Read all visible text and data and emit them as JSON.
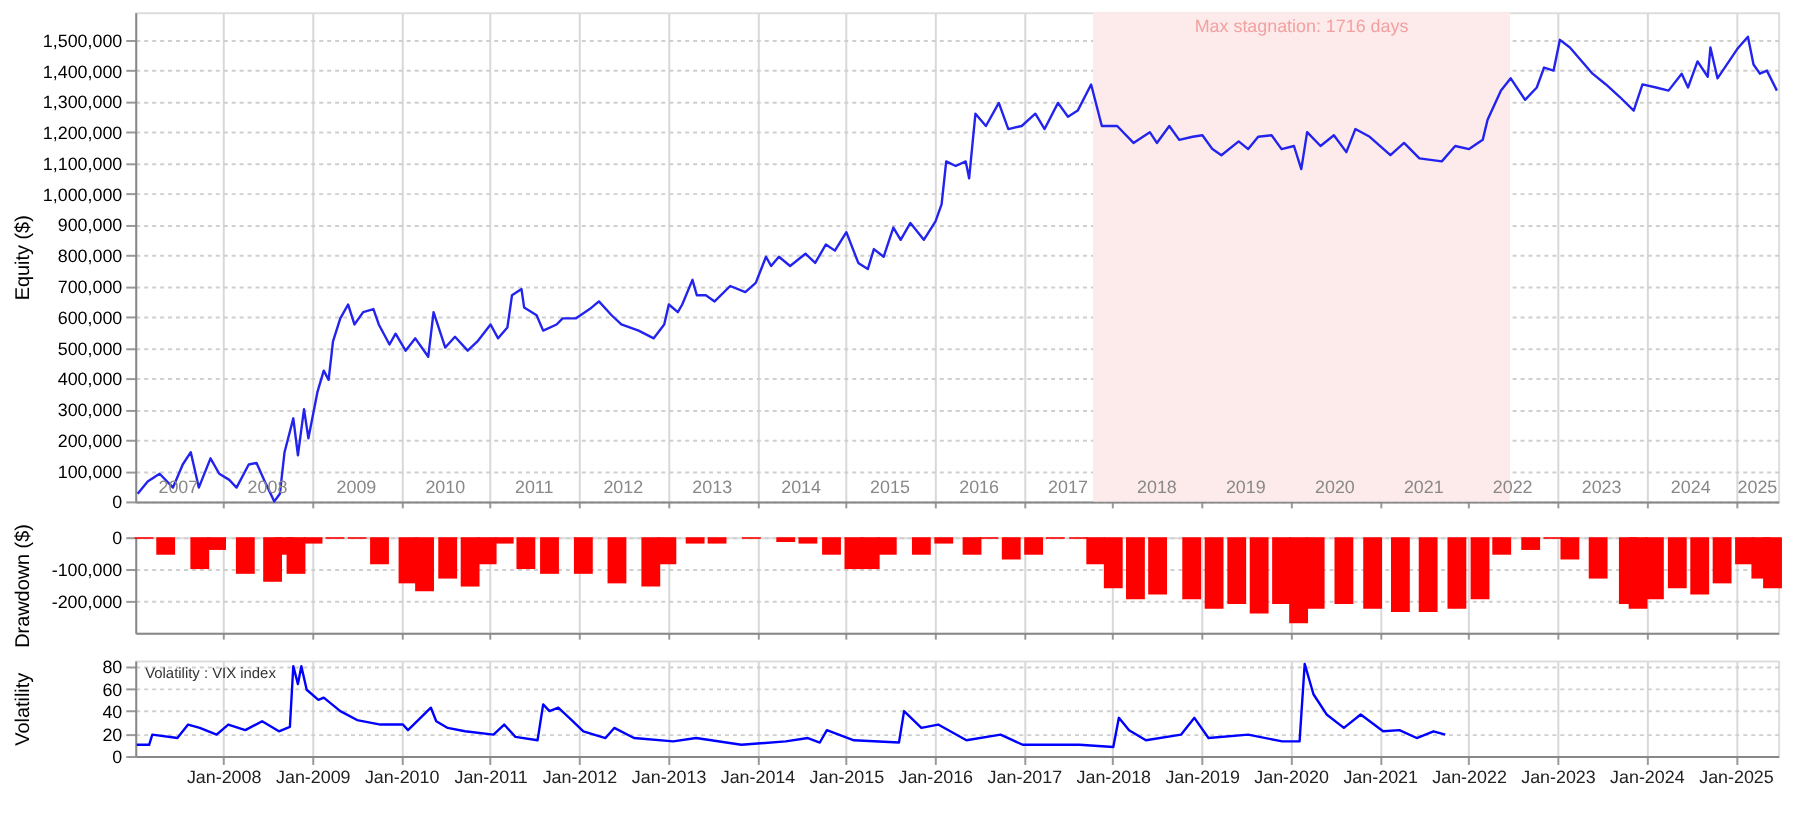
{
  "chart_data": [
    {
      "type": "line",
      "ylabel": "Equity ($)",
      "grid": true,
      "xlim": [
        "2007-01-05",
        "2025-06-25"
      ],
      "ylim": [
        0,
        1590000
      ],
      "yticks": [
        0,
        {
          "value": 100000,
          "label": "100,000"
        },
        {
          "value": 200000,
          "label": "200,000"
        },
        {
          "value": 300000,
          "label": "300,000"
        },
        {
          "value": 400000,
          "label": "400,000"
        },
        {
          "value": 500000,
          "label": "500,000"
        },
        {
          "value": 600000,
          "label": "600,000"
        },
        {
          "value": 700000,
          "label": "700,000"
        },
        {
          "value": 800000,
          "label": "800,000"
        },
        {
          "value": 900000,
          "label": "900,000"
        },
        {
          "value": 1000000,
          "label": "1,000,000"
        },
        {
          "value": 1100000,
          "label": "1,100,000"
        },
        {
          "value": 1200000,
          "label": "1,200,000"
        },
        {
          "value": 1300000,
          "label": "1,300,000"
        },
        {
          "value": 1400000,
          "label": "1,400,000"
        },
        {
          "value": 1500000,
          "label": "1,500,000"
        }
      ],
      "xticks": [
        {
          "value": "2007-07-01",
          "label": "2007"
        },
        {
          "value": "2008-01-01",
          "label": null
        },
        {
          "value": "2008-07-01",
          "label": "2008"
        },
        {
          "value": "2009-01-01",
          "label": null
        },
        {
          "value": "2009-07-01",
          "label": "2009"
        },
        {
          "value": "2010-01-01",
          "label": null
        },
        {
          "value": "2010-07-01",
          "label": "2010"
        },
        {
          "value": "2011-01-01",
          "label": null
        },
        {
          "value": "2011-07-01",
          "label": "2011"
        },
        {
          "value": "2012-01-01",
          "label": null
        },
        {
          "value": "2012-07-01",
          "label": "2012"
        },
        {
          "value": "2013-01-01",
          "label": null
        },
        {
          "value": "2013-07-01",
          "label": "2013"
        },
        {
          "value": "2014-01-01",
          "label": null
        },
        {
          "value": "2014-07-01",
          "label": "2014"
        },
        {
          "value": "2015-01-01",
          "label": null
        },
        {
          "value": "2015-07-01",
          "label": "2015"
        },
        {
          "value": "2016-01-01",
          "label": null
        },
        {
          "value": "2016-07-01",
          "label": "2016"
        },
        {
          "value": "2017-01-01",
          "label": null
        },
        {
          "value": "2017-07-01",
          "label": "2017"
        },
        {
          "value": "2018-01-01",
          "label": null
        },
        {
          "value": "2018-07-01",
          "label": "2018"
        },
        {
          "value": "2019-01-01",
          "label": null
        },
        {
          "value": "2019-07-01",
          "label": "2019"
        },
        {
          "value": "2020-01-01",
          "label": null
        },
        {
          "value": "2020-07-01",
          "label": "2020"
        },
        {
          "value": "2021-01-01",
          "label": null
        },
        {
          "value": "2021-07-01",
          "label": "2021"
        },
        {
          "value": "2022-01-01",
          "label": null
        },
        {
          "value": "2022-07-01",
          "label": "2022"
        },
        {
          "value": "2023-01-01",
          "label": null
        },
        {
          "value": "2023-07-01",
          "label": "2023"
        },
        {
          "value": "2024-01-01",
          "label": null
        },
        {
          "value": "2024-07-01",
          "label": "2024"
        },
        {
          "value": "2025-01-01",
          "label": null
        },
        {
          "value": "2025-04-01",
          "label": "2025"
        }
      ],
      "bands": [
        {
          "axis": "x",
          "from": "2017-10-12",
          "to": "2022-06-20",
          "label": "Max stagnation: 1716 days",
          "color": "#fdeaea"
        }
      ],
      "x": [
        "2007-01-15",
        "2007-02-25",
        "2007-04-15",
        "2007-06-09",
        "2007-07-19",
        "2007-08-21",
        "2007-09-23",
        "2007-11-10",
        "2007-12-16",
        "2008-01-26",
        "2008-02-25",
        "2008-04-15",
        "2008-05-17",
        "2008-06-20",
        "2008-07-29",
        "2008-08-21",
        "2008-09-09",
        "2008-10-15",
        "2008-11-03",
        "2008-11-28",
        "2008-12-16",
        "2009-01-22",
        "2009-02-17",
        "2009-03-09",
        "2009-03-27",
        "2009-04-26",
        "2009-05-28",
        "2009-06-23",
        "2009-07-29",
        "2009-09-09",
        "2009-10-01",
        "2009-11-14",
        "2009-12-09",
        "2010-01-19",
        "2010-02-28",
        "2010-04-22",
        "2010-05-14",
        "2010-07-01",
        "2010-08-10",
        "2010-10-01",
        "2010-11-10",
        "2011-01-03",
        "2011-02-03",
        "2011-03-13",
        "2011-04-01",
        "2011-05-10",
        "2011-05-21",
        "2011-07-11",
        "2011-08-07",
        "2011-10-01",
        "2011-10-26",
        "2011-12-20",
        "2012-02-14",
        "2012-03-23",
        "2012-05-14",
        "2012-06-23",
        "2012-09-02",
        "2012-11-03",
        "2012-12-16",
        "2013-01-04",
        "2013-02-10",
        "2013-02-28",
        "2013-04-11",
        "2013-04-29",
        "2013-06-05",
        "2013-07-11",
        "2013-09-13",
        "2013-11-14",
        "2013-12-27",
        "2014-02-07",
        "2014-02-28",
        "2014-04-01",
        "2014-05-17",
        "2014-07-19",
        "2014-08-28",
        "2014-10-11",
        "2014-11-17",
        "2015-01-03",
        "2015-02-21",
        "2015-04-01",
        "2015-04-26",
        "2015-06-05",
        "2015-07-15",
        "2015-08-14",
        "2015-09-23",
        "2015-11-17",
        "2016-01-04",
        "2016-01-29",
        "2016-02-17",
        "2016-03-27",
        "2016-05-07",
        "2016-05-21",
        "2016-06-16",
        "2016-07-29",
        "2016-09-20",
        "2016-10-29",
        "2016-12-23",
        "2017-02-17",
        "2017-03-27",
        "2017-05-21",
        "2017-07-01",
        "2017-08-10",
        "2017-10-04",
        "2017-11-17",
        "2018-01-19",
        "2018-03-27",
        "2018-06-02",
        "2018-07-01",
        "2018-08-21",
        "2018-10-01",
        "2018-11-25",
        "2019-01-04",
        "2019-02-14",
        "2019-03-23",
        "2019-06-02",
        "2019-07-11",
        "2019-08-21",
        "2019-10-15",
        "2019-11-25",
        "2020-01-15",
        "2020-02-14",
        "2020-03-09",
        "2020-05-03",
        "2020-06-27",
        "2020-08-17",
        "2020-09-23",
        "2020-11-21",
        "2021-02-14",
        "2021-04-11",
        "2021-06-13",
        "2021-09-13",
        "2021-11-07",
        "2022-01-03",
        "2022-02-28",
        "2022-03-20",
        "2022-05-14",
        "2022-06-23",
        "2022-08-21",
        "2022-10-08",
        "2022-11-07",
        "2022-12-16",
        "2023-01-11",
        "2023-02-21",
        "2023-05-25",
        "2023-07-19",
        "2023-09-13",
        "2023-11-10",
        "2023-12-16",
        "2024-02-10",
        "2024-04-01",
        "2024-05-25",
        "2024-06-20",
        "2024-07-29",
        "2024-09-09",
        "2024-09-20",
        "2024-10-19",
        "2025-01-08",
        "2025-02-21",
        "2025-03-16",
        "2025-04-11",
        "2025-05-10",
        "2025-06-20"
      ],
      "series": [
        {
          "color": "#2323ee",
          "values": [
            25000,
            65000,
            90000,
            45000,
            120000,
            160000,
            45000,
            140000,
            90000,
            70000,
            45000,
            120000,
            125000,
            65000,
            0,
            25000,
            160000,
            270000,
            150000,
            300000,
            205000,
            355000,
            425000,
            395000,
            520000,
            595000,
            640000,
            575000,
            615000,
            625000,
            575000,
            510000,
            545000,
            490000,
            530000,
            470000,
            615000,
            500000,
            535000,
            490000,
            520000,
            575000,
            530000,
            565000,
            670000,
            690000,
            630000,
            605000,
            555000,
            575000,
            595000,
            595000,
            625000,
            650000,
            605000,
            575000,
            555000,
            530000,
            575000,
            640000,
            615000,
            640000,
            720000,
            670000,
            670000,
            650000,
            700000,
            680000,
            710000,
            795000,
            765000,
            795000,
            765000,
            805000,
            775000,
            835000,
            815000,
            875000,
            775000,
            755000,
            820000,
            795000,
            890000,
            850000,
            905000,
            850000,
            910000,
            965000,
            1105000,
            1090000,
            1105000,
            1050000,
            1260000,
            1220000,
            1295000,
            1210000,
            1220000,
            1260000,
            1210000,
            1295000,
            1250000,
            1270000,
            1355000,
            1220000,
            1220000,
            1165000,
            1200000,
            1165000,
            1220000,
            1175000,
            1185000,
            1190000,
            1145000,
            1125000,
            1170000,
            1145000,
            1185000,
            1190000,
            1145000,
            1155000,
            1080000,
            1200000,
            1155000,
            1190000,
            1135000,
            1210000,
            1185000,
            1125000,
            1165000,
            1115000,
            1105000,
            1155000,
            1145000,
            1175000,
            1240000,
            1335000,
            1375000,
            1305000,
            1345000,
            1410000,
            1400000,
            1500000,
            1475000,
            1390000,
            1355000,
            1315000,
            1270000,
            1355000,
            1345000,
            1335000,
            1390000,
            1345000,
            1430000,
            1380000,
            1475000,
            1375000,
            1470000,
            1510000,
            1420000,
            1390000,
            1400000,
            1335000
          ]
        }
      ]
    },
    {
      "type": "bar",
      "ylabel": "Drawdown ($)",
      "grid": true,
      "tick_labels": "y",
      "xlim": [
        "2007-01-05",
        "2025-06-25"
      ],
      "ylim": [
        -300000,
        0
      ],
      "yticks": [
        {
          "value": -200000,
          "label": "-200,000"
        },
        {
          "value": -100000,
          "label": "-100,000"
        },
        0
      ],
      "xticks": [
        {
          "value": "2008-01-01",
          "label": null
        },
        {
          "value": "2009-01-01",
          "label": null
        },
        {
          "value": "2010-01-01",
          "label": null
        },
        {
          "value": "2011-01-01",
          "label": null
        },
        {
          "value": "2012-01-01",
          "label": null
        },
        {
          "value": "2013-01-01",
          "label": null
        },
        {
          "value": "2014-01-01",
          "label": null
        },
        {
          "value": "2015-01-01",
          "label": null
        },
        {
          "value": "2016-01-01",
          "label": null
        },
        {
          "value": "2017-01-01",
          "label": null
        },
        {
          "value": "2018-01-01",
          "label": null
        },
        {
          "value": "2019-01-01",
          "label": null
        },
        {
          "value": "2020-01-01",
          "label": null
        },
        {
          "value": "2021-01-01",
          "label": null
        },
        {
          "value": "2022-01-01",
          "label": null
        },
        {
          "value": "2023-01-01",
          "label": null
        },
        {
          "value": "2024-01-01",
          "label": null
        },
        {
          "value": "2025-01-01",
          "label": null
        }
      ],
      "x": [
        "2007-02-10",
        "2007-05-10",
        "2007-09-27",
        "2007-12-05",
        "2008-04-01",
        "2008-07-22",
        "2008-09-09",
        "2008-10-26",
        "2009-01-04",
        "2009-04-04",
        "2009-07-04",
        "2009-10-04",
        "2010-01-29",
        "2010-04-07",
        "2010-07-11",
        "2010-10-11",
        "2010-12-20",
        "2011-02-28",
        "2011-05-28",
        "2011-09-02",
        "2012-01-19",
        "2012-06-05",
        "2012-10-22",
        "2012-12-27",
        "2013-04-22",
        "2013-07-21",
        "2013-12-09",
        "2014-04-29",
        "2014-07-29",
        "2014-11-03",
        "2015-02-03",
        "2015-04-11",
        "2015-06-20",
        "2015-11-07",
        "2016-02-07",
        "2016-06-02",
        "2016-08-10",
        "2016-11-10",
        "2017-02-10",
        "2017-05-10",
        "2017-08-14",
        "2017-10-23",
        "2018-01-03",
        "2018-04-04",
        "2018-07-04",
        "2018-11-21",
        "2019-02-21",
        "2019-05-25",
        "2019-08-25",
        "2019-11-25",
        "2020-02-03",
        "2020-04-11",
        "2020-08-07",
        "2020-12-03",
        "2021-03-27",
        "2021-07-19",
        "2021-11-14",
        "2022-02-17",
        "2022-05-17",
        "2022-09-13",
        "2022-12-13",
        "2023-02-21",
        "2023-06-17",
        "2023-10-19",
        "2023-11-28",
        "2024-02-03",
        "2024-05-07",
        "2024-08-07",
        "2024-11-07",
        "2025-02-07",
        "2025-04-15",
        "2025-06-02"
      ],
      "series": [
        {
          "color": "#ff0000",
          "values": [
            -5000,
            -55000,
            -100000,
            -40000,
            -115000,
            -140000,
            -55000,
            -115000,
            -20000,
            -5000,
            -5000,
            -85000,
            -145000,
            -170000,
            -130000,
            -155000,
            -85000,
            -20000,
            -100000,
            -115000,
            -115000,
            -145000,
            -155000,
            -85000,
            -20000,
            -20000,
            -5000,
            -15000,
            -20000,
            -55000,
            -100000,
            -100000,
            -55000,
            -55000,
            -20000,
            -55000,
            -5000,
            -70000,
            -55000,
            -5000,
            -5000,
            -85000,
            -160000,
            -195000,
            -180000,
            -195000,
            -225000,
            -210000,
            -240000,
            -210000,
            -270000,
            -225000,
            -210000,
            -225000,
            -235000,
            -235000,
            -225000,
            -195000,
            -55000,
            -40000,
            -5000,
            -70000,
            -130000,
            -210000,
            -225000,
            -195000,
            -160000,
            -180000,
            -145000,
            -85000,
            -130000,
            -160000
          ]
        }
      ]
    },
    {
      "type": "line",
      "ylabel": "Volatility",
      "grid": true,
      "annotations": [
        "Volatility : VIX index"
      ],
      "xlim": [
        "2007-01-05",
        "2025-06-25"
      ],
      "ylim": [
        0,
        85
      ],
      "yticks": [
        0,
        20,
        40,
        60,
        80
      ],
      "xticks": [
        {
          "value": "2008-01-01",
          "label": "Jan-2008"
        },
        {
          "value": "2009-01-01",
          "label": "Jan-2009"
        },
        {
          "value": "2010-01-01",
          "label": "Jan-2010"
        },
        {
          "value": "2011-01-01",
          "label": "Jan-2011"
        },
        {
          "value": "2012-01-01",
          "label": "Jan-2012"
        },
        {
          "value": "2013-01-01",
          "label": "Jan-2013"
        },
        {
          "value": "2014-01-01",
          "label": "Jan-2014"
        },
        {
          "value": "2015-01-01",
          "label": "Jan-2015"
        },
        {
          "value": "2016-01-01",
          "label": "Jan-2016"
        },
        {
          "value": "2017-01-01",
          "label": "Jan-2017"
        },
        {
          "value": "2018-01-01",
          "label": "Jan-2018"
        },
        {
          "value": "2019-01-01",
          "label": "Jan-2019"
        },
        {
          "value": "2020-01-01",
          "label": "Jan-2020"
        },
        {
          "value": "2021-01-01",
          "label": "Jan-2021"
        },
        {
          "value": "2022-01-01",
          "label": "Jan-2022"
        },
        {
          "value": "2023-01-01",
          "label": "Jan-2023"
        },
        {
          "value": "2024-01-01",
          "label": "Jan-2024"
        },
        {
          "value": "2025-01-01",
          "label": "Jan-2025"
        }
      ],
      "x": [
        "2007-01-11",
        "2007-03-03",
        "2007-03-16",
        "2007-06-27",
        "2007-08-10",
        "2007-09-27",
        "2007-12-05",
        "2008-01-22",
        "2008-04-01",
        "2008-06-09",
        "2008-08-17",
        "2008-10-01",
        "2008-10-15",
        "2008-11-03",
        "2008-11-17",
        "2008-12-09",
        "2009-01-26",
        "2009-02-17",
        "2009-04-26",
        "2009-07-04",
        "2009-10-08",
        "2010-01-08",
        "2010-01-29",
        "2010-05-03",
        "2010-05-25",
        "2010-07-11",
        "2010-09-20",
        "2011-01-15",
        "2011-02-28",
        "2011-04-15",
        "2011-07-15",
        "2011-08-07",
        "2011-09-02",
        "2011-10-08",
        "2011-12-02",
        "2012-01-19",
        "2012-04-19",
        "2012-05-25",
        "2012-08-14",
        "2013-01-22",
        "2013-04-26",
        "2013-10-29",
        "2014-04-29",
        "2014-07-29",
        "2014-09-16",
        "2014-10-15",
        "2015-02-03",
        "2015-08-07",
        "2015-08-28",
        "2015-11-07",
        "2016-01-15",
        "2016-05-10",
        "2016-09-27",
        "2016-12-27",
        "2017-08-17",
        "2018-01-03",
        "2018-01-26",
        "2018-03-09",
        "2018-05-17",
        "2018-10-08",
        "2018-12-02",
        "2019-01-29",
        "2019-07-11",
        "2019-11-28",
        "2020-02-07",
        "2020-02-28",
        "2020-04-04",
        "2020-05-28",
        "2020-08-07",
        "2020-10-15",
        "2021-01-15",
        "2021-03-23",
        "2021-06-02",
        "2021-08-10",
        "2021-09-27"
      ],
      "series": [
        {
          "color": "#0000ff",
          "values": [
            10,
            10,
            19,
            16,
            28,
            25,
            19,
            28,
            23,
            31,
            22,
            26,
            80,
            64,
            80,
            59,
            50,
            52,
            40,
            32,
            28,
            28,
            23,
            43,
            31,
            25,
            22,
            19,
            28,
            17,
            14,
            46,
            40,
            43,
            32,
            22,
            16,
            25,
            16,
            13,
            16,
            10,
            13,
            16,
            12,
            23,
            14,
            12,
            40,
            25,
            28,
            14,
            19,
            10,
            10,
            8,
            34,
            23,
            14,
            19,
            34,
            16,
            19,
            13,
            13,
            82,
            55,
            37,
            25,
            37,
            22,
            23,
            16,
            22,
            19
          ]
        }
      ]
    }
  ]
}
